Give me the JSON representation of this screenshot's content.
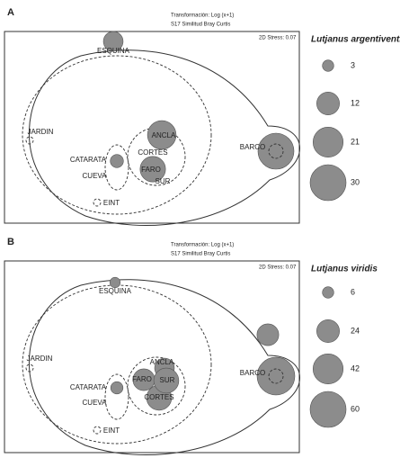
{
  "panels": [
    {
      "label": "A",
      "transform": "Transformación: Log (x+1)",
      "similarity": "S17 Similitud Bray Curtis",
      "stress": "2D Stress: 0.07",
      "species": "Lutjanus argentiventris",
      "legend": [
        3,
        12,
        21,
        30
      ],
      "sites": [
        {
          "name": "ESQUINA",
          "value": 9
        },
        {
          "name": "JARDIN",
          "value": 0
        },
        {
          "name": "CATARATA",
          "value": 4
        },
        {
          "name": "CUEVA",
          "value": null
        },
        {
          "name": "EINT",
          "value": 0
        },
        {
          "name": "ANCLA",
          "value": 19
        },
        {
          "name": "CORTES",
          "value": null
        },
        {
          "name": "FARO",
          "value": 15
        },
        {
          "name": "SUR",
          "value": null
        },
        {
          "name": "BARCO",
          "value": 30
        }
      ]
    },
    {
      "label": "B",
      "transform": "Transformación: Log (x+1)",
      "similarity": "S17 Similitud Bray Curtis",
      "stress": "2D Stress: 0.07",
      "species": "Lutjanus viridis",
      "legend": [
        6,
        24,
        42,
        60
      ],
      "sites": [
        {
          "name": "ESQUINA",
          "value": 5
        },
        {
          "name": "JARDIN",
          "value": 0
        },
        {
          "name": "CATARATA",
          "value": 7
        },
        {
          "name": "CUEVA",
          "value": null
        },
        {
          "name": "EINT",
          "value": 0
        },
        {
          "name": "ANCLA",
          "value": 18
        },
        {
          "name": "CORTES",
          "value": 29
        },
        {
          "name": "FARO",
          "value": 22
        },
        {
          "name": "SUR",
          "value": 29
        },
        {
          "name": "BARCO",
          "value": 66
        },
        {
          "name": null,
          "value": 22
        }
      ]
    }
  ]
}
